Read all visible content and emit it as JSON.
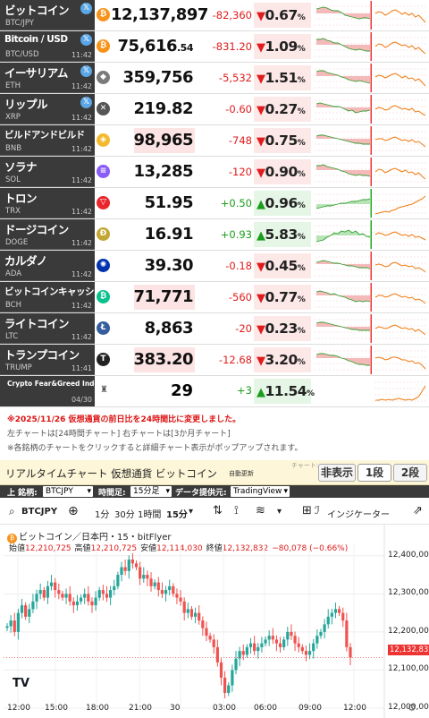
{
  "rows": [
    {
      "name": "ビットコイン",
      "sym": "BTC/JPY",
      "time": "",
      "price": "12,137,897",
      "dec": "",
      "chg": "-82,360",
      "pct": "0.67",
      "dir": "down",
      "icon": "₿",
      "ic": "#f7931a",
      "x": true,
      "flash": false,
      "c1": [
        5,
        4,
        3,
        4,
        6,
        7,
        7,
        9,
        12,
        13,
        14,
        15,
        16,
        15,
        15,
        16
      ],
      "c2": [
        10,
        8,
        9,
        12,
        10,
        7,
        6,
        8,
        11,
        9,
        12,
        10,
        14,
        12,
        16,
        20
      ]
    },
    {
      "name": "Bitcoin / USD",
      "sym": "BTC/USD",
      "time": "11:42",
      "price": "75,616",
      "dec": ".54",
      "chg": "-831.20",
      "pct": "1.09",
      "dir": "down",
      "icon": "₿",
      "ic": "#f7931a",
      "x": true,
      "flash": false,
      "c1": [
        4,
        4,
        3,
        5,
        6,
        8,
        8,
        10,
        12,
        14,
        15,
        16,
        15,
        16,
        17,
        17
      ],
      "c2": [
        12,
        9,
        10,
        13,
        11,
        8,
        7,
        9,
        11,
        10,
        13,
        11,
        15,
        13,
        17,
        20
      ]
    },
    {
      "name": "イーサリアム",
      "sym": "ETH",
      "time": "11:42",
      "price": "359,756",
      "dec": "",
      "chg": "-5,532",
      "pct": "1.51",
      "dir": "down",
      "icon": "◆",
      "ic": "#7b7b7b",
      "x": true,
      "flash": false,
      "c1": [
        5,
        4,
        4,
        6,
        7,
        8,
        9,
        11,
        12,
        14,
        15,
        16,
        15,
        16,
        17,
        18
      ],
      "c2": [
        11,
        9,
        10,
        12,
        10,
        8,
        7,
        9,
        12,
        10,
        13,
        12,
        15,
        13,
        17,
        21
      ]
    },
    {
      "name": "リップル",
      "sym": "XRP",
      "time": "11:42",
      "price": "219.82",
      "dec": "",
      "chg": "-0.60",
      "pct": "0.27",
      "dir": "down",
      "icon": "✕",
      "ic": "#555",
      "x": true,
      "flash": false,
      "c1": [
        6,
        5,
        6,
        7,
        8,
        9,
        9,
        10,
        12,
        14,
        13,
        16,
        15,
        14,
        14,
        13
      ],
      "c2": [
        12,
        10,
        11,
        13,
        12,
        9,
        8,
        10,
        12,
        11,
        13,
        11,
        15,
        14,
        17,
        19
      ]
    },
    {
      "name": "ビルドアンドビルド",
      "sym": "BNB",
      "time": "11:42",
      "price": "98,965",
      "dec": "",
      "chg": "-748",
      "pct": "0.75",
      "dir": "down",
      "icon": "◈",
      "ic": "#f3ba2f",
      "x": false,
      "flash": true,
      "c1": [
        7,
        6,
        6,
        7,
        8,
        9,
        10,
        11,
        12,
        13,
        14,
        15,
        15,
        16,
        16,
        16
      ],
      "c2": [
        11,
        10,
        10,
        12,
        11,
        9,
        8,
        10,
        12,
        11,
        13,
        11,
        14,
        13,
        16,
        19
      ]
    },
    {
      "name": "ソラナ",
      "sym": "SOL",
      "time": "11:42",
      "price": "13,285",
      "dec": "",
      "chg": "-120",
      "pct": "0.90",
      "dir": "down",
      "icon": "≡",
      "ic": "#8a5cf6",
      "x": false,
      "flash": false,
      "c1": [
        5,
        5,
        4,
        6,
        7,
        8,
        9,
        11,
        12,
        14,
        15,
        16,
        15,
        16,
        16,
        17
      ],
      "c2": [
        12,
        9,
        10,
        13,
        11,
        9,
        8,
        10,
        12,
        10,
        13,
        12,
        15,
        13,
        17,
        20
      ]
    },
    {
      "name": "トロン",
      "sym": "TRX",
      "time": "11:42",
      "price": "51.95",
      "dec": "",
      "chg": "+0.50",
      "pct": "0.96",
      "dir": "up",
      "icon": "▽",
      "ic": "#e8262b",
      "x": false,
      "flash": false,
      "c1": [
        18,
        17,
        16,
        15,
        15,
        14,
        13,
        12,
        12,
        11,
        10,
        10,
        9,
        8,
        8,
        7
      ],
      "c2": [
        24,
        23,
        22,
        21,
        22,
        20,
        19,
        17,
        16,
        15,
        14,
        13,
        11,
        9,
        7,
        4
      ]
    },
    {
      "name": "ドージコイン",
      "sym": "DOGE",
      "time": "11:42",
      "price": "16.91",
      "dec": "",
      "chg": "+0.93",
      "pct": "5.83",
      "dir": "up",
      "icon": "Ð",
      "ic": "#c3a634",
      "x": false,
      "flash": false,
      "c1": [
        20,
        19,
        18,
        15,
        13,
        10,
        11,
        8,
        9,
        7,
        10,
        8,
        12,
        11,
        14,
        15
      ],
      "c2": [
        12,
        10,
        11,
        13,
        12,
        10,
        9,
        11,
        13,
        12,
        14,
        12,
        15,
        14,
        16,
        18
      ]
    },
    {
      "name": "カルダノ",
      "sym": "ADA",
      "time": "11:42",
      "price": "39.30",
      "dec": "",
      "chg": "-0.18",
      "pct": "0.45",
      "dir": "down",
      "icon": "✺",
      "ic": "#0033ad",
      "x": false,
      "flash": false,
      "c1": [
        8,
        7,
        6,
        7,
        8,
        9,
        9,
        10,
        11,
        12,
        12,
        13,
        14,
        14,
        14,
        15
      ],
      "c2": [
        11,
        10,
        11,
        13,
        12,
        9,
        8,
        10,
        12,
        11,
        13,
        12,
        15,
        14,
        16,
        19
      ]
    },
    {
      "name": "ビットコインキャッシュ",
      "sym": "BCH",
      "time": "11:42",
      "price": "71,771",
      "dec": "",
      "chg": "-560",
      "pct": "0.77",
      "dir": "down",
      "icon": "₿",
      "ic": "#0ac18e",
      "x": false,
      "flash": true,
      "c1": [
        6,
        5,
        6,
        7,
        9,
        8,
        10,
        11,
        12,
        14,
        15,
        17,
        16,
        17,
        16,
        17
      ],
      "c2": [
        12,
        10,
        10,
        12,
        11,
        9,
        8,
        10,
        12,
        11,
        13,
        12,
        15,
        14,
        16,
        19
      ]
    },
    {
      "name": "ライトコイン",
      "sym": "LTC",
      "time": "11:42",
      "price": "8,863",
      "dec": "",
      "chg": "-20",
      "pct": "0.23",
      "dir": "down",
      "icon": "Ł",
      "ic": "#345d9d",
      "x": false,
      "flash": false,
      "c1": [
        6,
        5,
        5,
        6,
        7,
        8,
        9,
        10,
        11,
        12,
        13,
        13,
        14,
        14,
        14,
        14
      ],
      "c2": [
        12,
        10,
        11,
        12,
        11,
        9,
        8,
        10,
        12,
        11,
        13,
        12,
        15,
        13,
        16,
        19
      ]
    },
    {
      "name": "トランプコイン",
      "sym": "TRUMP",
      "time": "11:41",
      "price": "383.20",
      "dec": "",
      "chg": "-12.68",
      "pct": "3.20",
      "dir": "down",
      "icon": "T",
      "ic": "#222",
      "x": false,
      "flash": true,
      "c1": [
        6,
        5,
        5,
        6,
        7,
        7,
        8,
        10,
        11,
        13,
        14,
        16,
        17,
        17,
        18,
        18
      ],
      "c2": [
        10,
        9,
        10,
        12,
        11,
        9,
        9,
        10,
        12,
        12,
        14,
        13,
        16,
        15,
        18,
        22
      ]
    }
  ],
  "fg": {
    "name": "Crypto Fear&Greed Index",
    "date": "04/30",
    "value": "29",
    "chg": "+3",
    "pct": "11.54",
    "c2": [
      22,
      22,
      21,
      22,
      21,
      22,
      21,
      20,
      21,
      22,
      21,
      22,
      20,
      18,
      12,
      6
    ]
  },
  "notes": {
    "n1": "※2025/11/26 仮想通貨の前日比を24時間比に変更しました。",
    "n2": "左チャートは[24時間チャート] 右チャートは[3か月チャート]",
    "n3": "※各銘柄のチャートをクリックすると詳細チャート表示がポップアップされます。"
  },
  "panel": {
    "title": "リアルタイムチャート 仮想通貨 ビットコイン",
    "sub": "自動更新",
    "chart_label": "チャート:",
    "hide": "非表示",
    "one": "1段",
    "two": "2段"
  },
  "filters": {
    "lbl_sym": "上 銘柄:",
    "sym": "BTCJPY",
    "lbl_tf": "時間足:",
    "tf": "15分足",
    "lbl_src": "データ提供元:",
    "src": "TradingView"
  },
  "tv": {
    "sym": "BTCJPY",
    "add": "⊕",
    "t1": "1分",
    "t2": "30分",
    "t3": "1時間",
    "t4": "15分",
    "indicator": "インジケーター",
    "title": "ビットコイン／日本円・15・bitFlyer",
    "ohlc": {
      "o_lbl": "始値",
      "o": "12,210,725",
      "h_lbl": "高値",
      "h": "12,210,725",
      "l_lbl": "安値",
      "l": "12,114,030",
      "c_lbl": "終値",
      "c": "12,132,832",
      "chg": "−80,078 (−0.66%)"
    },
    "last": "12,132,832",
    "logo": "TV"
  },
  "chart_data": {
    "type": "candlestick",
    "title": "ビットコイン／日本円・15・bitFlyer",
    "ylim": [
      12000000,
      12430000
    ],
    "yticks": [
      "12,400,000",
      "12,300,000",
      "12,200,000",
      "12,100,000",
      "12,000,000"
    ],
    "xticks": [
      "12:00",
      "15:00",
      "18:00",
      "21:00",
      "30",
      "03:00",
      "06:00",
      "09:00",
      "12:00"
    ],
    "close": [
      12215000,
      12230000,
      12200000,
      12250000,
      12270000,
      12240000,
      12260000,
      12280000,
      12300000,
      12310000,
      12290000,
      12320000,
      12330000,
      12310000,
      12300000,
      12290000,
      12300000,
      12280000,
      12270000,
      12280000,
      12290000,
      12300000,
      12280000,
      12270000,
      12290000,
      12310000,
      12300000,
      12290000,
      12310000,
      12320000,
      12350000,
      12370000,
      12360000,
      12390000,
      12380000,
      12370000,
      12340000,
      12350000,
      12340000,
      12320000,
      12330000,
      12310000,
      12300000,
      12310000,
      12320000,
      12300000,
      12290000,
      12280000,
      12250000,
      12260000,
      12240000,
      12250000,
      12230000,
      12210000,
      12190000,
      12180000,
      12160000,
      12120000,
      12080000,
      12040000,
      12060000,
      12100000,
      12130000,
      12150000,
      12140000,
      12160000,
      12170000,
      12150000,
      12160000,
      12170000,
      12180000,
      12190000,
      12180000,
      12170000,
      12160000,
      12180000,
      12200000,
      12190000,
      12170000,
      12160000,
      12150000,
      12140000,
      12150000,
      12170000,
      12190000,
      12200000,
      12220000,
      12240000,
      12250000,
      12260000,
      12250000,
      12230000,
      12160000,
      12132832
    ]
  }
}
